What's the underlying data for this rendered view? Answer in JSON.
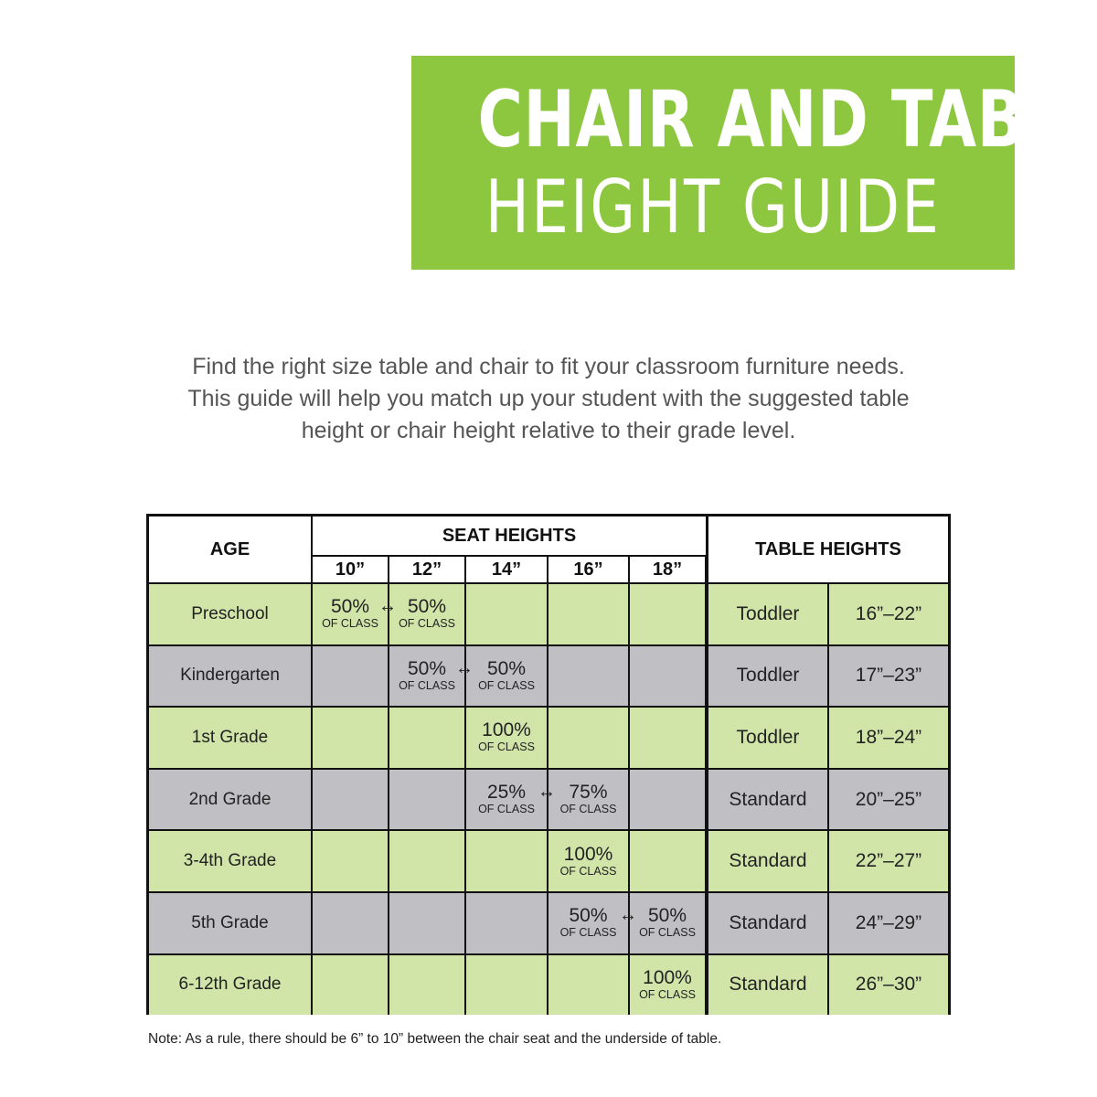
{
  "title": {
    "line1": "CHAIR AND TABLE",
    "line2": "HEIGHT GUIDE",
    "color": "#8dc63f"
  },
  "intro": [
    "Find the right size table and chair to fit your classroom furniture needs.",
    "This guide will help you match up your student with the suggested table",
    "height or chair height relative to their grade level."
  ],
  "table": {
    "age_header": "AGE",
    "seat_header": "SEAT HEIGHTS",
    "table_header": "TABLE HEIGHTS",
    "seat_sizes": [
      "10”",
      "12”",
      "14”",
      "16”",
      "18”"
    ],
    "of_class": "OF CLASS",
    "row_colors": {
      "green": "#d2e5a9",
      "gray": "#c0bfc4"
    },
    "rows": [
      {
        "age": "Preschool",
        "seats": [
          "50%",
          "50%",
          null,
          null,
          null
        ],
        "arrow_after": 0,
        "type": "Toddler",
        "range": "16”–22”"
      },
      {
        "age": "Kindergarten",
        "seats": [
          null,
          "50%",
          "50%",
          null,
          null
        ],
        "arrow_after": 1,
        "type": "Toddler",
        "range": "17”–23”"
      },
      {
        "age": "1st Grade",
        "seats": [
          null,
          null,
          "100%",
          null,
          null
        ],
        "arrow_after": null,
        "type": "Toddler",
        "range": "18”–24”"
      },
      {
        "age": "2nd Grade",
        "seats": [
          null,
          null,
          "25%",
          "75%",
          null
        ],
        "arrow_after": 2,
        "type": "Standard",
        "range": "20”–25”"
      },
      {
        "age": "3-4th Grade",
        "seats": [
          null,
          null,
          null,
          "100%",
          null
        ],
        "arrow_after": null,
        "type": "Standard",
        "range": "22”–27”"
      },
      {
        "age": "5th Grade",
        "seats": [
          null,
          null,
          null,
          "50%",
          "50%"
        ],
        "arrow_after": 3,
        "type": "Standard",
        "range": "24”–29”"
      },
      {
        "age": "6-12th Grade",
        "seats": [
          null,
          null,
          null,
          null,
          "100%"
        ],
        "arrow_after": null,
        "type": "Standard",
        "range": "26”–30”"
      }
    ]
  },
  "note": "Note: As a rule, there should be 6” to 10” between the chair seat and the underside of table."
}
